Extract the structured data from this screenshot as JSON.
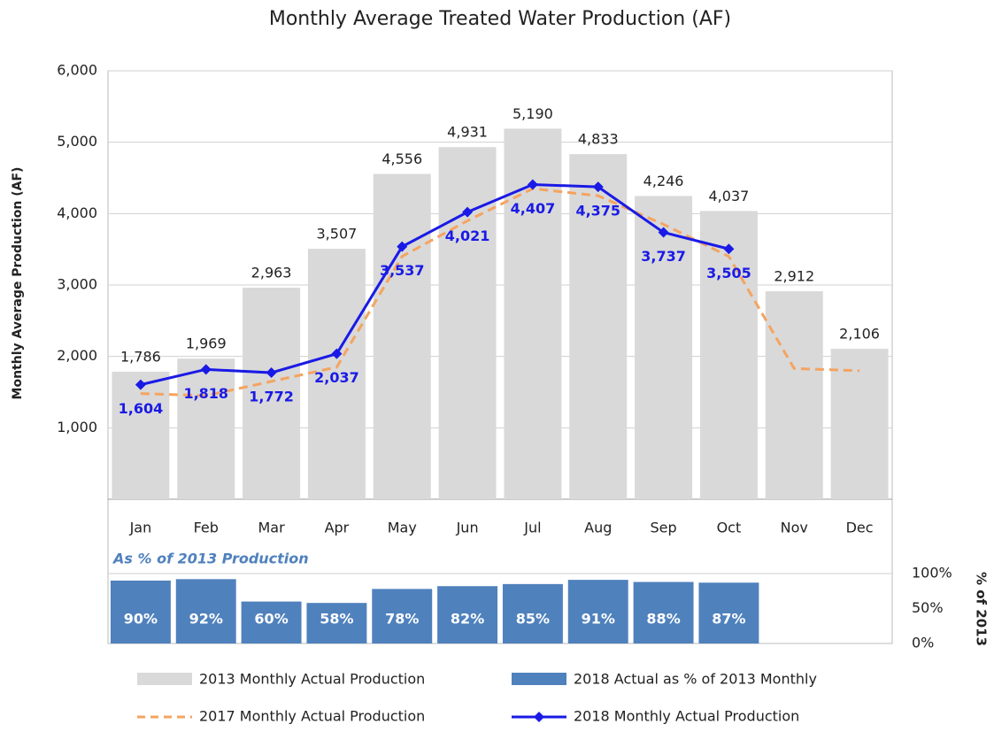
{
  "chart_data": [
    {
      "type": "bar",
      "title": "Monthly Average Treated Water Production (AF)",
      "y_label": "Monthly Average Production (AF)",
      "categories": [
        "Jan",
        "Feb",
        "Mar",
        "Apr",
        "May",
        "Jun",
        "Jul",
        "Aug",
        "Sep",
        "Oct",
        "Nov",
        "Dec"
      ],
      "ylim": [
        0,
        6000
      ],
      "yticks": [
        {
          "value": 1000,
          "label": "1,000"
        },
        {
          "value": 2000,
          "label": "2,000"
        },
        {
          "value": 3000,
          "label": "3,000"
        },
        {
          "value": 4000,
          "label": "4,000"
        },
        {
          "value": 5000,
          "label": "5,000"
        },
        {
          "value": 6000,
          "label": "6,000"
        }
      ],
      "grid": true,
      "series": [
        {
          "name": "2013 Monthly Actual Production",
          "type": "bar",
          "color": "#d9d9d9",
          "values": [
            1786,
            1969,
            2963,
            3507,
            4556,
            4931,
            5190,
            4833,
            4246,
            4037,
            2912,
            2106
          ],
          "value_labels": [
            "1,786",
            "1,969",
            "2,963",
            "3,507",
            "4,556",
            "4,931",
            "5,190",
            "4,833",
            "4,246",
            "4,037",
            "2,912",
            "2,106"
          ]
        },
        {
          "name": "2017 Monthly Actual Production",
          "type": "line",
          "dashed": true,
          "color": "#f4a460",
          "values": [
            1480,
            1450,
            1650,
            1850,
            3400,
            3900,
            4350,
            4250,
            3850,
            3400,
            1830,
            1800
          ]
        },
        {
          "name": "2018 Monthly Actual Production",
          "type": "line",
          "marker": "diamond",
          "color": "#1a1ae6",
          "values": [
            1604,
            1818,
            1772,
            2037,
            3537,
            4021,
            4407,
            4375,
            3737,
            3505,
            null,
            null
          ],
          "value_labels": [
            "1,604",
            "1,818",
            "1,772",
            "2,037",
            "3,537",
            "4,021",
            "4,407",
            "4,375",
            "3,737",
            "3,505",
            null,
            null
          ]
        }
      ]
    },
    {
      "type": "bar",
      "title": "As % of 2013 Production",
      "y_label": "% of 2013",
      "ylim": [
        0,
        100
      ],
      "yticks": [
        {
          "value": 0,
          "label": "0%"
        },
        {
          "value": 50,
          "label": "50%"
        },
        {
          "value": 100,
          "label": "100%"
        }
      ],
      "series": [
        {
          "name": "2018 Actual as % of 2013 Monthly",
          "type": "bar",
          "color": "#4f81bd",
          "values": [
            90,
            92,
            60,
            58,
            78,
            82,
            85,
            91,
            88,
            87,
            null,
            null
          ],
          "value_labels": [
            "90%",
            "92%",
            "60%",
            "58%",
            "78%",
            "82%",
            "85%",
            "91%",
            "88%",
            "87%",
            null,
            null
          ]
        }
      ]
    }
  ]
}
